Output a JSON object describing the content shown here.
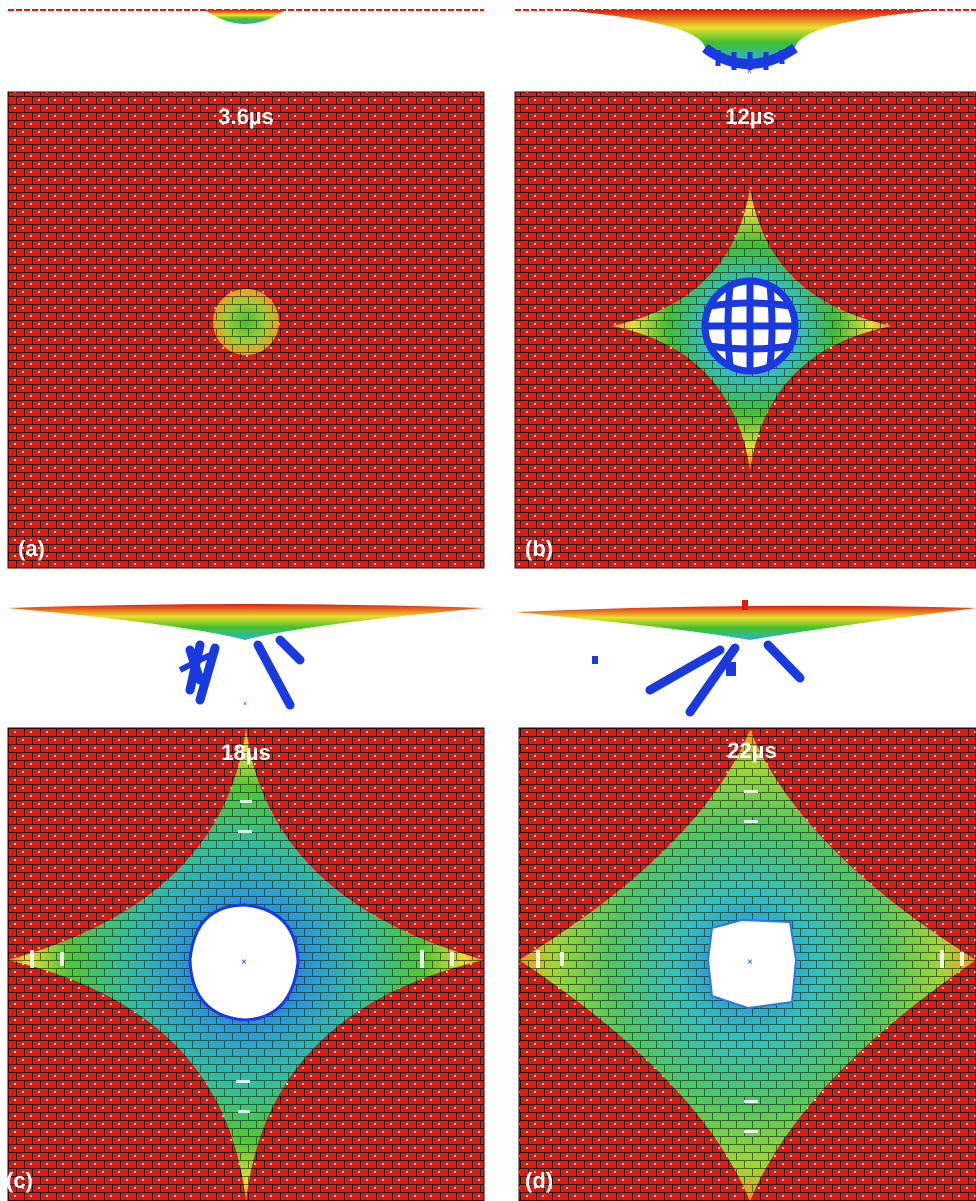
{
  "panels": [
    {
      "id": "a",
      "label": "(a)",
      "time": "3.6µs"
    },
    {
      "id": "b",
      "label": "(b)",
      "time": "12µs"
    },
    {
      "id": "c",
      "label": "(c)",
      "time": "18µs"
    },
    {
      "id": "d",
      "label": "(d)",
      "time": "22µs"
    }
  ],
  "colors": {
    "fabric_red": "#e01a10",
    "orange": "#f08a18",
    "yellow": "#e8e030",
    "green": "#40c030",
    "cyan": "#30c0c0",
    "blue": "#1040e0",
    "grid": "#1a0a0a"
  }
}
